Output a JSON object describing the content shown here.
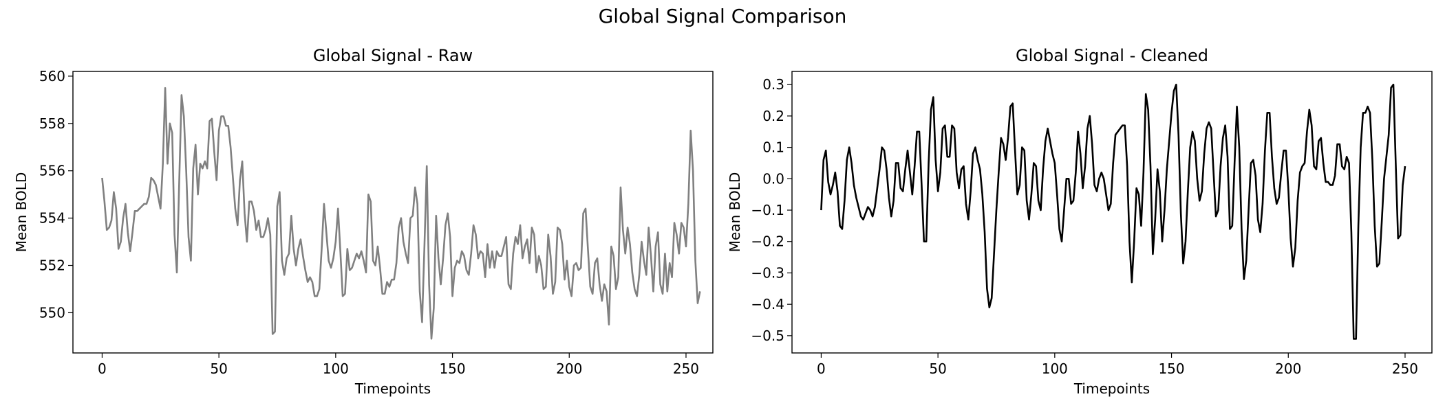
{
  "figure": {
    "title": "Global Signal Comparison"
  },
  "chart_data": [
    {
      "type": "line",
      "title": "Global Signal - Raw",
      "xlabel": "Timepoints",
      "ylabel": "Mean BOLD",
      "xlim": [
        -12.5,
        261.5
      ],
      "ylim": [
        548.3,
        560.2
      ],
      "xticks": [
        0,
        50,
        100,
        150,
        200,
        250
      ],
      "yticks": [
        550,
        552,
        554,
        556,
        558,
        560
      ],
      "color": "#808080",
      "x_start": 0,
      "values": [
        555.7,
        554.7,
        553.5,
        553.6,
        553.9,
        555.1,
        554.4,
        552.7,
        553.0,
        554.0,
        554.6,
        553.4,
        552.6,
        553.4,
        554.3,
        554.3,
        554.4,
        554.5,
        554.6,
        554.6,
        554.9,
        555.7,
        555.6,
        555.4,
        554.9,
        554.4,
        556.3,
        559.5,
        556.3,
        558.0,
        557.6,
        553.3,
        551.7,
        555.5,
        559.2,
        558.3,
        556.0,
        553.2,
        552.2,
        556.1,
        557.1,
        555.0,
        556.3,
        556.1,
        556.4,
        556.1,
        558.1,
        558.2,
        556.8,
        555.6,
        557.7,
        558.3,
        558.3,
        557.9,
        557.9,
        557.0,
        555.7,
        554.4,
        553.7,
        555.6,
        556.4,
        554.2,
        553.0,
        554.7,
        554.7,
        554.3,
        553.5,
        553.9,
        553.2,
        553.2,
        553.5,
        554.0,
        553.3,
        549.1,
        549.2,
        554.5,
        555.1,
        552.2,
        551.6,
        552.3,
        552.5,
        554.1,
        552.7,
        552.0,
        552.7,
        553.1,
        552.4,
        551.8,
        551.3,
        551.5,
        551.3,
        550.7,
        550.7,
        551.0,
        552.7,
        554.6,
        553.4,
        552.2,
        551.9,
        552.3,
        553.0,
        554.4,
        552.6,
        550.7,
        550.8,
        552.7,
        551.8,
        551.9,
        552.2,
        552.5,
        552.3,
        552.6,
        552.2,
        551.7,
        555.0,
        554.7,
        552.2,
        552.0,
        552.8,
        551.9,
        550.8,
        550.8,
        551.3,
        551.1,
        551.4,
        551.4,
        552.1,
        553.6,
        554.0,
        553.0,
        552.5,
        552.1,
        554.0,
        554.1,
        555.3,
        554.6,
        550.9,
        549.6,
        552.8,
        556.2,
        551.2,
        548.9,
        550.2,
        554.1,
        552.3,
        551.2,
        552.3,
        553.7,
        554.2,
        553.2,
        550.7,
        551.9,
        552.2,
        552.1,
        552.6,
        552.4,
        551.8,
        551.6,
        552.5,
        553.7,
        553.3,
        552.3,
        552.6,
        552.5,
        551.5,
        552.9,
        551.9,
        552.6,
        551.9,
        552.6,
        552.4,
        552.4,
        552.8,
        553.2,
        551.2,
        551.0,
        552.5,
        553.2,
        552.9,
        553.7,
        552.3,
        552.8,
        553.1,
        552.1,
        553.6,
        553.3,
        551.7,
        552.4,
        552.0,
        551.0,
        551.1,
        553.3,
        552.4,
        550.8,
        551.3,
        553.6,
        553.5,
        552.9,
        551.4,
        552.2,
        551.1,
        550.7,
        552.0,
        552.1,
        551.8,
        551.9,
        554.2,
        554.4,
        552.7,
        551.1,
        550.8,
        552.1,
        552.3,
        551.2,
        550.5,
        551.2,
        550.9,
        549.5,
        552.8,
        552.4,
        551.0,
        551.5,
        555.3,
        553.5,
        552.5,
        553.6,
        552.9,
        551.7,
        551.0,
        550.7,
        551.6,
        553.0,
        552.2,
        551.6,
        553.6,
        552.4,
        550.9,
        552.8,
        553.4,
        551.2,
        550.8,
        552.5,
        550.9,
        552.1,
        551.5,
        553.8,
        553.3,
        552.5,
        553.8,
        553.6,
        552.8,
        554.6,
        557.7,
        556.0,
        552.2,
        550.4,
        550.9
      ]
    },
    {
      "type": "line",
      "title": "Global Signal - Cleaned",
      "xlabel": "Timepoints",
      "ylabel": "Mean BOLD",
      "xlim": [
        -12.5,
        261.5
      ],
      "ylim": [
        -0.555,
        0.342
      ],
      "xticks": [
        0,
        50,
        100,
        150,
        200,
        250
      ],
      "yticks": [
        -0.5,
        -0.4,
        -0.3,
        -0.2,
        -0.1,
        0.0,
        0.1,
        0.2,
        0.3
      ],
      "color": "#000000",
      "x_start": 0,
      "values": [
        -0.1,
        0.06,
        0.09,
        -0.01,
        -0.05,
        -0.02,
        0.02,
        -0.04,
        -0.15,
        -0.16,
        -0.07,
        0.06,
        0.1,
        0.05,
        -0.02,
        -0.06,
        -0.09,
        -0.12,
        -0.13,
        -0.11,
        -0.09,
        -0.1,
        -0.12,
        -0.09,
        -0.03,
        0.03,
        0.1,
        0.09,
        0.03,
        -0.06,
        -0.12,
        -0.07,
        0.05,
        0.05,
        -0.03,
        -0.04,
        0.03,
        0.09,
        0.02,
        -0.05,
        0.04,
        0.15,
        0.15,
        -0.02,
        -0.2,
        -0.2,
        0.05,
        0.22,
        0.26,
        0.06,
        -0.04,
        0.02,
        0.16,
        0.17,
        0.07,
        0.07,
        0.17,
        0.16,
        0.02,
        -0.03,
        0.03,
        0.04,
        -0.08,
        -0.13,
        -0.04,
        0.08,
        0.1,
        0.06,
        0.03,
        -0.05,
        -0.17,
        -0.35,
        -0.41,
        -0.38,
        -0.24,
        -0.1,
        0.02,
        0.13,
        0.11,
        0.06,
        0.13,
        0.23,
        0.24,
        0.09,
        -0.05,
        -0.02,
        0.1,
        0.09,
        -0.07,
        -0.13,
        -0.05,
        0.05,
        0.04,
        -0.07,
        -0.1,
        0.03,
        0.12,
        0.16,
        0.12,
        0.08,
        0.05,
        -0.05,
        -0.16,
        -0.2,
        -0.1,
        0.0,
        0.0,
        -0.08,
        -0.07,
        0.02,
        0.15,
        0.08,
        -0.03,
        0.04,
        0.16,
        0.2,
        0.11,
        -0.02,
        -0.04,
        0.0,
        0.02,
        0.0,
        -0.05,
        -0.1,
        -0.08,
        0.05,
        0.14,
        0.15,
        0.16,
        0.17,
        0.17,
        0.04,
        -0.2,
        -0.33,
        -0.2,
        -0.03,
        -0.05,
        -0.15,
        0.02,
        0.27,
        0.22,
        0.04,
        -0.24,
        -0.13,
        0.03,
        -0.04,
        -0.2,
        -0.1,
        0.03,
        0.12,
        0.21,
        0.28,
        0.3,
        0.14,
        -0.11,
        -0.27,
        -0.2,
        -0.04,
        0.1,
        0.15,
        0.12,
        0.0,
        -0.07,
        -0.04,
        0.08,
        0.16,
        0.18,
        0.16,
        0.02,
        -0.12,
        -0.1,
        0.04,
        0.13,
        0.17,
        0.07,
        -0.16,
        -0.15,
        0.05,
        0.23,
        0.1,
        -0.16,
        -0.32,
        -0.26,
        -0.1,
        0.05,
        0.06,
        0.01,
        -0.13,
        -0.17,
        -0.08,
        0.09,
        0.21,
        0.21,
        0.07,
        -0.03,
        -0.08,
        -0.06,
        0.02,
        0.09,
        0.09,
        -0.03,
        -0.19,
        -0.28,
        -0.22,
        -0.07,
        0.02,
        0.04,
        0.05,
        0.15,
        0.22,
        0.17,
        0.04,
        0.03,
        0.12,
        0.13,
        0.05,
        -0.01,
        -0.01,
        -0.02,
        -0.02,
        0.01,
        0.11,
        0.11,
        0.04,
        0.03,
        0.07,
        0.05,
        -0.17,
        -0.51,
        -0.51,
        -0.15,
        0.1,
        0.21,
        0.21,
        0.23,
        0.21,
        0.06,
        -0.15,
        -0.28,
        -0.27,
        -0.14,
        0.0,
        0.07,
        0.14,
        0.29,
        0.3,
        0.05,
        -0.19,
        -0.18,
        -0.02,
        0.04
      ]
    }
  ]
}
